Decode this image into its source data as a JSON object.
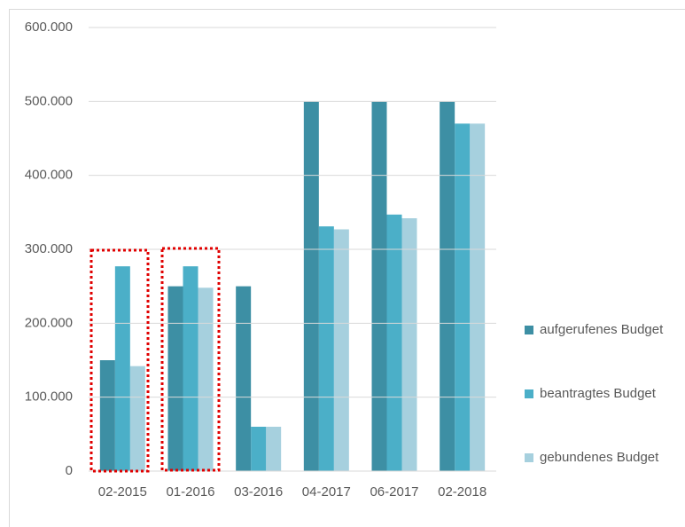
{
  "chart_data": {
    "type": "bar",
    "categories": [
      "02-2015",
      "01-2016",
      "03-2016",
      "04-2017",
      "06-2017",
      "02-2018"
    ],
    "series": [
      {
        "name": "aufgerufenes Budget",
        "color": "#3d8fa4",
        "values": [
          150000,
          250000,
          250000,
          500000,
          500000,
          500000
        ]
      },
      {
        "name": "beantragtes Budget",
        "color": "#4bafc8",
        "values": [
          277000,
          277000,
          60000,
          331000,
          347000,
          470000
        ]
      },
      {
        "name": "gebundenes Budget",
        "color": "#a6d0de",
        "values": [
          142000,
          248000,
          60000,
          327000,
          342000,
          470000
        ]
      }
    ],
    "ylim": [
      0,
      600000
    ],
    "yticks": [
      0,
      {
        "value": 100000,
        "label": "100.000"
      },
      {
        "value": 200000,
        "label": "200.000"
      },
      {
        "value": 300000,
        "label": "300.000"
      },
      {
        "value": 400000,
        "label": "400.000"
      },
      {
        "value": 500000,
        "label": "500.000"
      },
      {
        "value": 600000,
        "label": "600.000"
      }
    ],
    "grid": true,
    "legend": "right"
  }
}
